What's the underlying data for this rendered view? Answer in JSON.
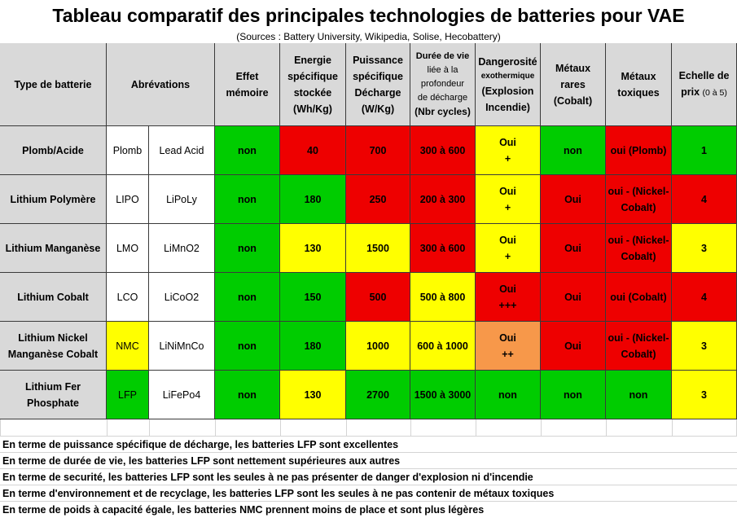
{
  "title": "Tableau comparatif des principales technologies de batteries pour VAE",
  "sources": "(Sources : Battery University, Wikipedia, Solise, Hecobattery)",
  "headers": {
    "type": "Type de batterie",
    "abrev": "Abrévations",
    "effet": [
      "Effet",
      "mémoire"
    ],
    "energie": [
      "Energie",
      "spécifique",
      "stockée",
      "(Wh/Kg)"
    ],
    "puissance": [
      "Puissance",
      "spécifique",
      "Décharge",
      "(W/Kg)"
    ],
    "duree": [
      "Durée de vie",
      "liée à la",
      "profondeur",
      "de décharge",
      "(Nbr cycles)"
    ],
    "danger": [
      "Dangerosité",
      "exothermique",
      "(Explosion",
      "Incendie)"
    ],
    "metaux_rares": [
      "Métaux",
      "rares",
      "(Cobalt)"
    ],
    "metaux_toxiques": [
      "Métaux",
      "toxiques"
    ],
    "prix": [
      "Echelle de",
      "prix ",
      "(0 à 5)"
    ]
  },
  "rows": [
    {
      "name": [
        "Plomb/Acide"
      ],
      "abr1": "Plomb",
      "abr2": "Lead Acid",
      "effet": "non",
      "energie": "40",
      "puissance": "700",
      "duree": "300 à 600",
      "danger": [
        "Oui",
        "+"
      ],
      "rares": "non",
      "toxiques": [
        "oui (Plomb)"
      ],
      "prix": "1"
    },
    {
      "name": [
        "Lithium Polymère"
      ],
      "abr1": "LIPO",
      "abr2": "LiPoLy",
      "effet": "non",
      "energie": "180",
      "puissance": "250",
      "duree": "200 à 300",
      "danger": [
        "Oui",
        "+"
      ],
      "rares": "Oui",
      "toxiques": [
        "oui - (Nickel-",
        "Cobalt)"
      ],
      "prix": "4"
    },
    {
      "name": [
        "Lithium Manganèse"
      ],
      "abr1": "LMO",
      "abr2": "LiMnO2",
      "effet": "non",
      "energie": "130",
      "puissance": "1500",
      "duree": "300 à 600",
      "danger": [
        "Oui",
        "+"
      ],
      "rares": "Oui",
      "toxiques": [
        "oui - (Nickel-",
        "Cobalt)"
      ],
      "prix": "3"
    },
    {
      "name": [
        "Lithium Cobalt"
      ],
      "abr1": "LCO",
      "abr2": "LiCoO2",
      "effet": "non",
      "energie": "150",
      "puissance": "500",
      "duree": "500 à 800",
      "danger": [
        "Oui",
        "+++"
      ],
      "rares": "Oui",
      "toxiques": [
        "oui (Cobalt)"
      ],
      "prix": "4"
    },
    {
      "name": [
        "Lithium Nickel",
        "Manganèse Cobalt"
      ],
      "abr1": "NMC",
      "abr2": "LiNiMnCo",
      "effet": "non",
      "energie": "180",
      "puissance": "1000",
      "duree": "600 à 1000",
      "danger": [
        "Oui",
        "++"
      ],
      "rares": "Oui",
      "toxiques": [
        "oui - (Nickel-",
        "Cobalt)"
      ],
      "prix": "3"
    },
    {
      "name": [
        "Lithium Fer",
        "Phosphate"
      ],
      "abr1": "LFP",
      "abr2": "LiFePo4",
      "effet": "non",
      "energie": "130",
      "puissance": "2700",
      "duree": "1500 à 3000",
      "danger": [
        "non"
      ],
      "rares": "non",
      "toxiques": [
        "non"
      ],
      "prix": "3"
    }
  ],
  "notes": [
    "En terme de puissance spécifique de décharge, les batteries LFP sont excellentes",
    "En terme de durée de vie, les batteries LFP sont nettement supérieures aux autres",
    "En terme de securité, les batteries LFP sont les seules à ne pas présenter de danger d'explosion ni d'incendie",
    "En terme d'environnement et de recyclage, les batteries LFP sont les seules à ne pas contenir de métaux toxiques",
    "En terme de poids à capacité égale, les batteries NMC prennent moins de place et sont plus légères"
  ],
  "colors": {
    "green": "#00cc00",
    "red": "#ee0000",
    "yellow": "#ffff00",
    "orange": "#f7984a",
    "header_gray": "#d9d9d9"
  },
  "cell_colors": [
    {
      "abr1": "white",
      "effet": "green",
      "energie": "red",
      "puissance": "red",
      "duree": "red",
      "danger": "yellow",
      "rares": "green",
      "toxiques": "red",
      "prix": "green"
    },
    {
      "abr1": "white",
      "effet": "green",
      "energie": "green",
      "puissance": "red",
      "duree": "red",
      "danger": "yellow",
      "rares": "red",
      "toxiques": "red",
      "prix": "red"
    },
    {
      "abr1": "white",
      "effet": "green",
      "energie": "yellow",
      "puissance": "yellow",
      "duree": "red",
      "danger": "yellow",
      "rares": "red",
      "toxiques": "red",
      "prix": "yellow"
    },
    {
      "abr1": "white",
      "effet": "green",
      "energie": "green",
      "puissance": "red",
      "duree": "yellow",
      "danger": "red",
      "rares": "red",
      "toxiques": "red",
      "prix": "red"
    },
    {
      "abr1": "yellow",
      "effet": "green",
      "energie": "green",
      "puissance": "yellow",
      "duree": "yellow",
      "danger": "orange",
      "rares": "red",
      "toxiques": "red",
      "prix": "yellow"
    },
    {
      "abr1": "green",
      "effet": "green",
      "energie": "yellow",
      "puissance": "green",
      "duree": "green",
      "danger": "green",
      "rares": "green",
      "toxiques": "green",
      "prix": "yellow"
    }
  ]
}
